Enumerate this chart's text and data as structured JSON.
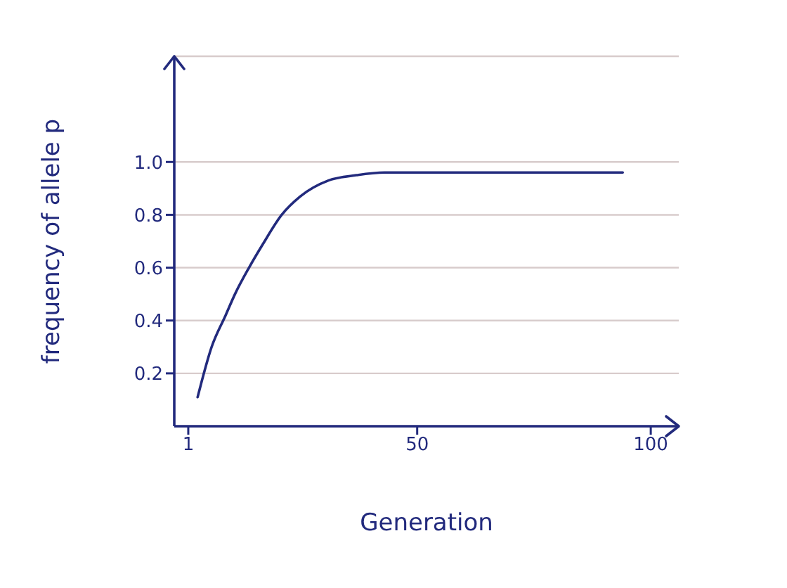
{
  "chart_data": {
    "type": "line",
    "xlabel": "Generation",
    "ylabel": "frequency of allele p",
    "x": [
      3,
      6,
      9,
      11,
      14,
      17,
      21,
      25,
      31,
      37,
      43,
      60,
      80,
      94
    ],
    "series": [
      {
        "color": "#222a7d",
        "values": [
          0.11,
          0.3,
          0.42,
          0.5,
          0.6,
          0.69,
          0.8,
          0.87,
          0.93,
          0.95,
          0.96,
          0.96,
          0.96,
          0.96
        ]
      }
    ],
    "xlim": [
      -2,
      106
    ],
    "ylim": [
      0,
      1.4
    ],
    "xticks": [
      1,
      50,
      100
    ],
    "yticks": [
      0.2,
      0.4,
      0.6,
      0.8,
      {
        "value": 1,
        "label": "1.0"
      }
    ],
    "grid": "y"
  }
}
